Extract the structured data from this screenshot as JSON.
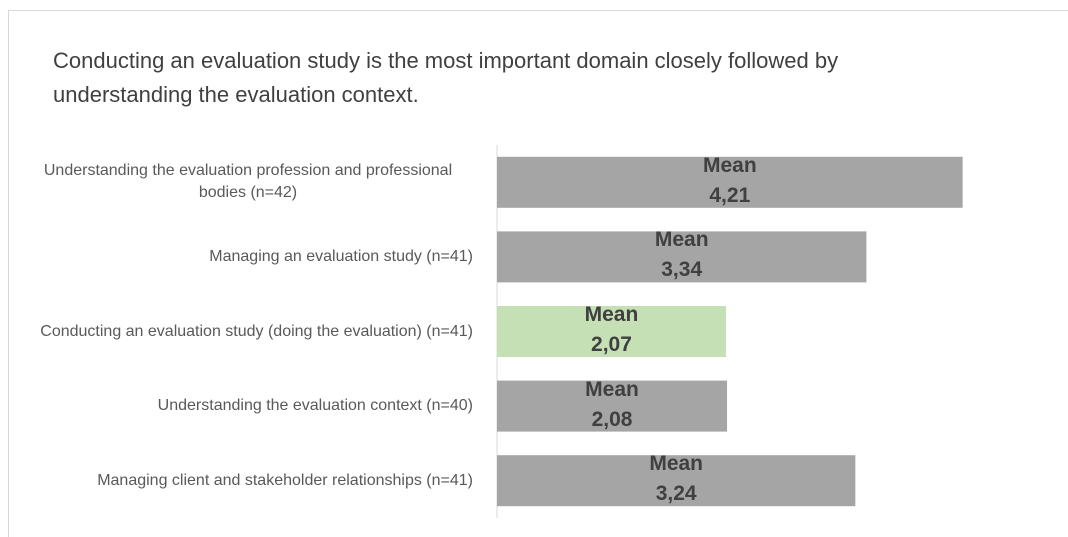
{
  "chart_data": {
    "type": "bar",
    "orientation": "horizontal",
    "title": "Conducting an evaluation study is the most important domain closely followed by understanding the evaluation context.",
    "categories": [
      "Understanding the evaluation profession and professional bodies (n=42)",
      "Managing an evaluation study (n=41)",
      "Conducting an evaluation study (doing the evaluation) (n=41)",
      "Understanding the evaluation context (n=40)",
      "Managing client and stakeholder relationships (n=41)"
    ],
    "values": [
      4.21,
      3.34,
      2.07,
      2.08,
      3.24
    ],
    "value_labels": [
      "Mean\n4,21",
      "Mean\n3,34",
      "Mean\n2,07",
      "Mean\n2,08",
      "Mean\n3,24"
    ],
    "colors": [
      "#a5a5a5",
      "#a5a5a5",
      "#c5e0b4",
      "#a5a5a5",
      "#a5a5a5"
    ],
    "xlim": [
      0,
      5
    ]
  }
}
